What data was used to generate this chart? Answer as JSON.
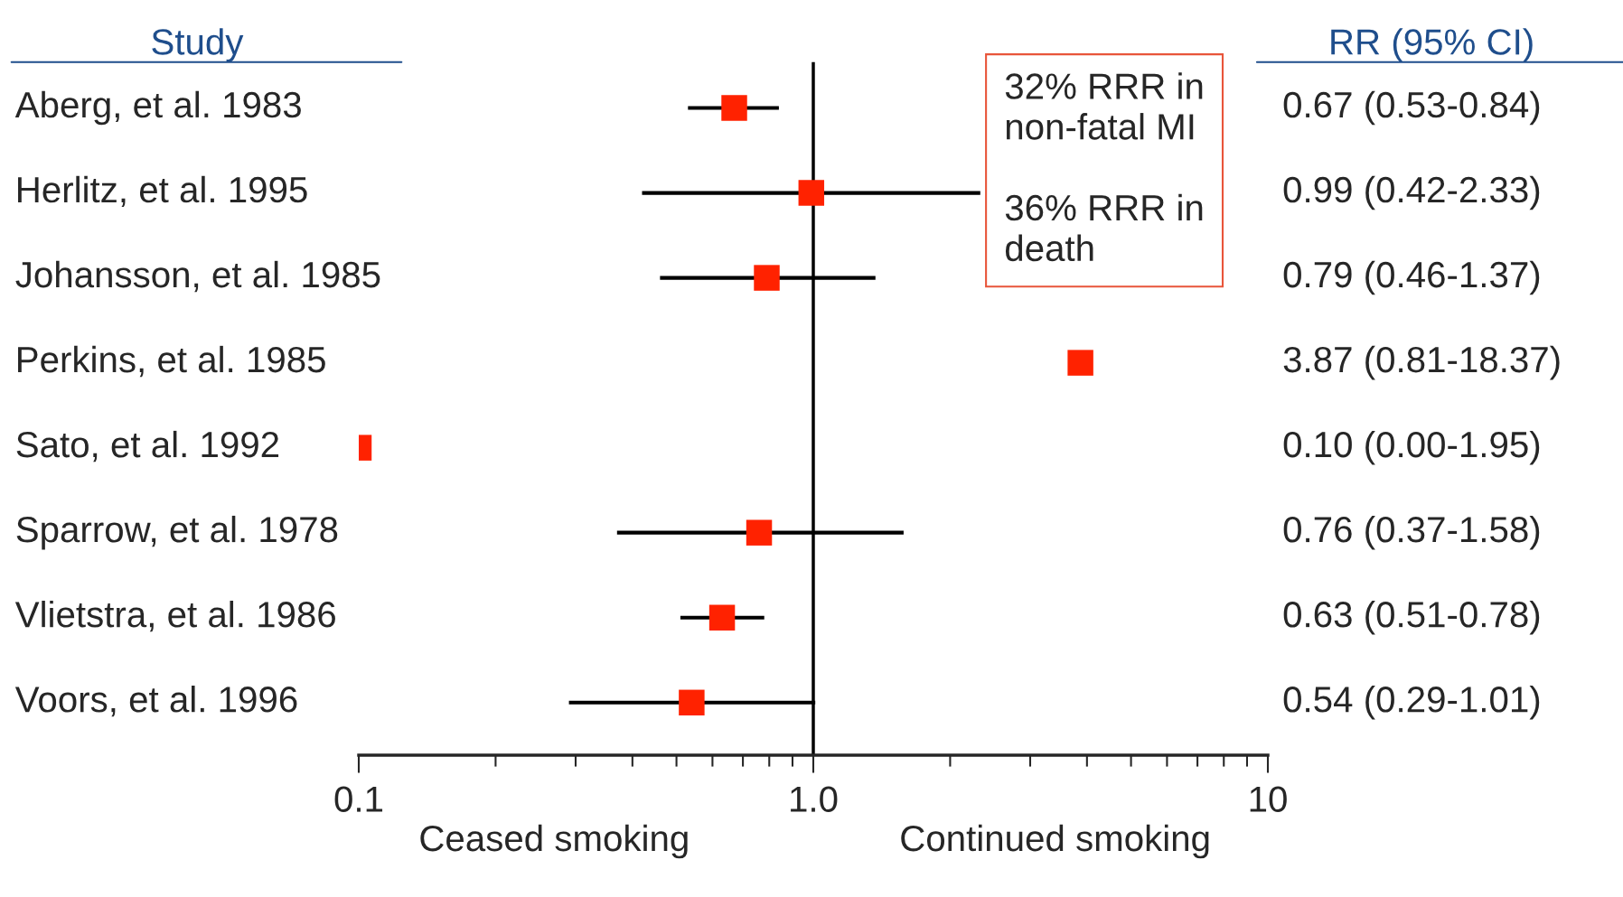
{
  "chart_data": {
    "type": "scatter",
    "orientation": "horizontal",
    "log": "x",
    "marker": "square",
    "grid": false,
    "legend": false,
    "tick_labels": "x",
    "ylabel": "Study",
    "y2label": "RR (95% CI)",
    "categories": [
      "Aberg, et al. 1983",
      "Herlitz, et al. 1995",
      "Johansson, et al. 1985",
      "Perkins, et al. 1985",
      "Sato, et al. 1992",
      "Sparrow, et al. 1978",
      "Vlietstra, et al. 1986",
      "Voors, et al. 1996"
    ],
    "series": [
      {
        "color": "#ff2200",
        "values": [
          0.67,
          0.99,
          0.79,
          3.87,
          0.1,
          0.76,
          0.63,
          0.54
        ],
        "errors": [
          [
            0.53,
            0.84
          ],
          [
            0.42,
            2.33
          ],
          [
            0.46,
            1.37
          ],
          null,
          null,
          [
            0.37,
            1.58
          ],
          [
            0.51,
            0.78
          ],
          [
            0.29,
            1.01
          ]
        ]
      }
    ],
    "xlim": [
      0.1,
      10
    ],
    "xticks": [
      0.1,
      {
        "value": 0.2,
        "label": null
      },
      {
        "value": 0.3,
        "label": null
      },
      {
        "value": 0.4,
        "label": null
      },
      {
        "value": 0.5,
        "label": null
      },
      {
        "value": 0.6,
        "label": null
      },
      {
        "value": 0.7,
        "label": null
      },
      {
        "value": 0.8,
        "label": null
      },
      {
        "value": 0.9,
        "label": null
      },
      {
        "value": 1,
        "label": "1.0"
      },
      {
        "value": 2,
        "label": null
      },
      {
        "value": 3,
        "label": null
      },
      {
        "value": 4,
        "label": null
      },
      {
        "value": 5,
        "label": null
      },
      {
        "value": 6,
        "label": null
      },
      {
        "value": 7,
        "label": null
      },
      {
        "value": 8,
        "label": null
      },
      {
        "value": 9,
        "label": null
      },
      10
    ],
    "ref_lines": [
      {
        "axis": "x",
        "value": 1,
        "color": "#000000"
      }
    ],
    "annotations": [
      "32% RRR in\nnon-fatal MI\n\n36% RRR in\ndeath",
      "Ceased smoking",
      "Continued smoking",
      "0.67 (0.53-0.84)",
      "0.99 (0.42-2.33)",
      "0.79 (0.46-1.37)",
      "3.87 (0.81-18.37)",
      "0.10 (0.00-1.95)",
      "0.76 (0.37-1.58)",
      "0.63 (0.51-0.78)",
      "0.54 (0.29-1.01)"
    ]
  }
}
